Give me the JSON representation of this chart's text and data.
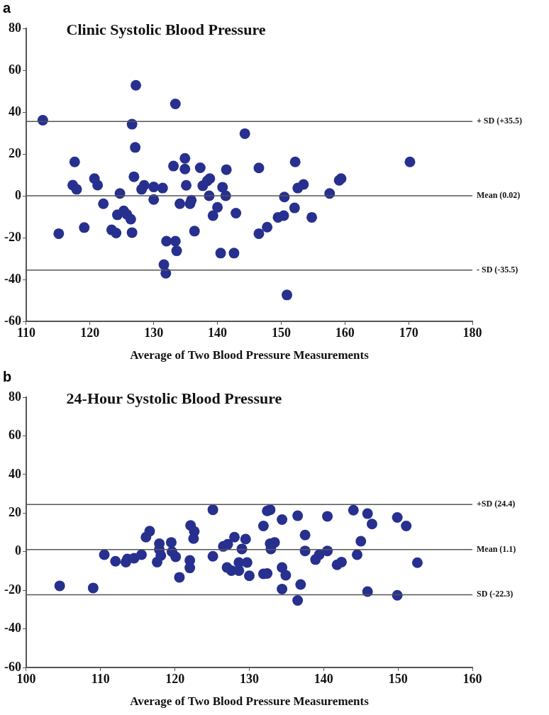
{
  "chart_data": [
    {
      "type": "scatter",
      "title": "Clinic Systolic Blood Pressure",
      "xlabel": "Average of Two Blood Pressure Measurements",
      "annotations": [
        "a"
      ],
      "xlim": [
        110,
        180
      ],
      "xticks": [
        110,
        120,
        130,
        140,
        150,
        160,
        170,
        180
      ],
      "ylim": [
        -60,
        80
      ],
      "yticks": [
        -60,
        -40,
        -20,
        0,
        20,
        40,
        60,
        80
      ],
      "grid": false,
      "legend": false,
      "marker": "circle",
      "ref_lines": [
        {
          "axis": "y",
          "value": 35.5,
          "label": "+ SD (+35.5)",
          "color": "#555555"
        },
        {
          "axis": "y",
          "value": 0.02,
          "label": "Mean (0.02)",
          "color": "#555555"
        },
        {
          "axis": "y",
          "value": -35.5,
          "label": "- SD (-35.5)",
          "color": "#555555"
        }
      ],
      "series": [
        {
          "color": "#27308f",
          "x": [
            112.6,
            115.1,
            117.6,
            117.3,
            117.9,
            119.1,
            120.7,
            121.2,
            122.1,
            123.4,
            124.1,
            124.3,
            124.7,
            125.3,
            125.8,
            126.4,
            126.6,
            126.6,
            127.2,
            127.1,
            126.9,
            128.1,
            128.5,
            130.0,
            130.0,
            131.4,
            132.0,
            131.6,
            131.9,
            133.4,
            133.6,
            133.1,
            133.4,
            134.1,
            134.9,
            134.9,
            135.1,
            135.9,
            135.7,
            136.4,
            137.3,
            137.7,
            138.4,
            138.8,
            138.7,
            139.3,
            140.0,
            140.5,
            140.8,
            141.3,
            141.4,
            142.9,
            142.6,
            144.3,
            146.5,
            146.5,
            147.8,
            150.5,
            149.5,
            150.4,
            150.9,
            152.2,
            152.1,
            152.6,
            153.5,
            154.8,
            157.6,
            159.1,
            159.4,
            170.2
          ],
          "values": [
            36.1,
            -18.1,
            16.2,
            5.1,
            3.1,
            -15.2,
            8.2,
            5.1,
            -3.8,
            -16.3,
            -17.8,
            -9.1,
            1.1,
            -7.2,
            -8.9,
            -11.2,
            -17.6,
            34.2,
            52.8,
            23.1,
            9.1,
            3.1,
            5.0,
            4.2,
            -1.8,
            3.7,
            -21.7,
            -32.9,
            -37.0,
            -21.7,
            -26.3,
            14.2,
            43.9,
            -3.8,
            17.9,
            12.8,
            5.0,
            -2.1,
            -3.8,
            -16.9,
            13.4,
            4.8,
            7.1,
            8.2,
            0,
            -9.5,
            -5.5,
            -27.4,
            4.1,
            0,
            12.5,
            -8.3,
            -27.4,
            29.7,
            13.3,
            -18.1,
            -15.0,
            -0.6,
            -10.3,
            -9.5,
            -47.4,
            16.2,
            -5.8,
            3.7,
            5.4,
            -10.3,
            1.1,
            7.4,
            8.2,
            16.2
          ]
        }
      ]
    },
    {
      "type": "scatter",
      "title": "24-Hour Systolic Blood Pressure",
      "xlabel": "Average of Two Blood Pressure Measurements",
      "annotations": [
        "b"
      ],
      "xlim": [
        100,
        160
      ],
      "xticks": [
        100,
        110,
        120,
        130,
        140,
        150,
        160
      ],
      "ylim": [
        -60,
        80
      ],
      "yticks": [
        -60,
        -40,
        -20,
        0,
        20,
        40,
        60,
        80
      ],
      "grid": false,
      "legend": false,
      "marker": "circle",
      "ref_lines": [
        {
          "axis": "y",
          "value": 24.4,
          "label": "+SD (24.4)",
          "color": "#555555"
        },
        {
          "axis": "y",
          "value": 1.1,
          "label": "Mean (1.1)",
          "color": "#555555"
        },
        {
          "axis": "y",
          "value": -22.3,
          "label": "SD (-22.3)",
          "color": "#555555"
        }
      ],
      "series": [
        {
          "color": "#27308f",
          "x": [
            104.5,
            109.0,
            110.5,
            112.0,
            113.4,
            113.6,
            114.5,
            115.5,
            116.1,
            116.6,
            117.9,
            117.6,
            118.1,
            117.9,
            119.5,
            119.6,
            120.1,
            120.6,
            122.1,
            122.6,
            122.5,
            122.0,
            122.0,
            125.1,
            125.1,
            126.5,
            127.1,
            127.0,
            127.6,
            128.0,
            128.6,
            128.6,
            129.0,
            129.5,
            129.7,
            130.0,
            131.9,
            132.4,
            132.8,
            131.9,
            132.8,
            132.9,
            133.4,
            132.4,
            134.4,
            134.4,
            134.9,
            134.4,
            136.5,
            136.5,
            136.9,
            137.5,
            137.5,
            138.9,
            139.4,
            140.5,
            140.5,
            141.8,
            142.4,
            144.0,
            144.5,
            145.0,
            145.9,
            146.5,
            145.9,
            149.9,
            149.9,
            151.1,
            152.6
          ],
          "values": [
            -17.7,
            -18.8,
            -1.6,
            -5.0,
            -5.4,
            -3.8,
            -3.4,
            -1.6,
            7.5,
            10.6,
            4.1,
            -5.4,
            -2.0,
            1.1,
            4.8,
            0,
            -2.7,
            -13.3,
            13.6,
            10.5,
            6.8,
            -4.5,
            -8.4,
            21.7,
            -2.4,
            2.7,
            3.8,
            -8.2,
            -9.8,
            7.5,
            -9.8,
            -5.6,
            1.4,
            6.5,
            -5.6,
            -12.5,
            -11.5,
            21.1,
            21.7,
            13.3,
            4.1,
            1.4,
            4.8,
            -11.3,
            16.6,
            -8.2,
            -12.2,
            -19.4,
            18.6,
            -25.3,
            -17.0,
            8.6,
            0.4,
            -4.1,
            -1.6,
            18.3,
            0.4,
            -6.8,
            -5.4,
            21.5,
            -1.6,
            5.4,
            19.7,
            14.3,
            -20.7,
            17.7,
            -22.6,
            13.3,
            -5.7
          ]
        }
      ]
    }
  ]
}
